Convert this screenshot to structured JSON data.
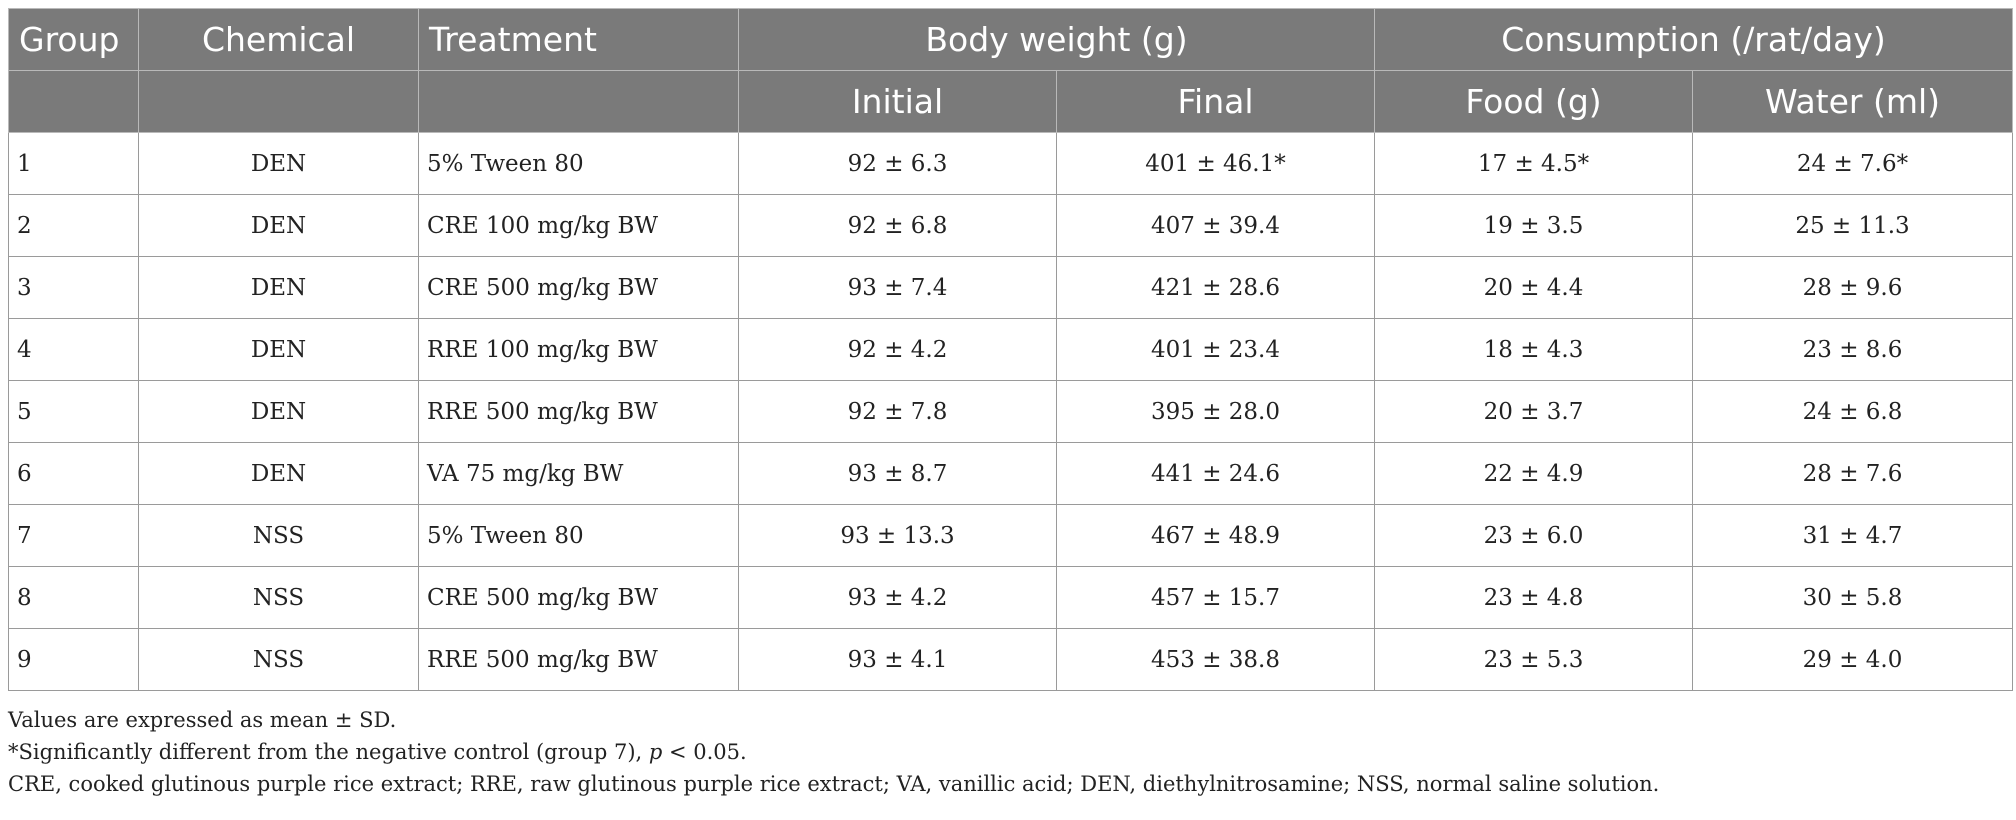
{
  "table": {
    "headers": {
      "group": "Group",
      "chemical": "Chemical",
      "treatment": "Treatment",
      "body_weight": "Body weight (g)",
      "consumption": "Consumption (/rat/day)",
      "initial": "Initial",
      "final": "Final",
      "food": "Food (g)",
      "water": "Water (ml)"
    },
    "rows": [
      {
        "group": "1",
        "chemical": "DEN",
        "treatment": "5% Tween 80",
        "initial": "92 ± 6.3",
        "final": "401 ± 46.1*",
        "food": "17 ± 4.5*",
        "water": "24 ± 7.6*"
      },
      {
        "group": "2",
        "chemical": "DEN",
        "treatment": "CRE 100 mg/kg BW",
        "initial": "92 ± 6.8",
        "final": "407 ± 39.4",
        "food": "19 ± 3.5",
        "water": "25 ± 11.3"
      },
      {
        "group": "3",
        "chemical": "DEN",
        "treatment": "CRE 500 mg/kg BW",
        "initial": "93 ± 7.4",
        "final": "421 ± 28.6",
        "food": "20 ± 4.4",
        "water": "28 ± 9.6"
      },
      {
        "group": "4",
        "chemical": "DEN",
        "treatment": "RRE 100 mg/kg BW",
        "initial": "92 ± 4.2",
        "final": "401 ± 23.4",
        "food": "18 ± 4.3",
        "water": "23 ± 8.6"
      },
      {
        "group": "5",
        "chemical": "DEN",
        "treatment": "RRE 500 mg/kg BW",
        "initial": "92 ± 7.8",
        "final": "395 ± 28.0",
        "food": "20 ± 3.7",
        "water": "24 ± 6.8"
      },
      {
        "group": "6",
        "chemical": "DEN",
        "treatment": "VA 75 mg/kg BW",
        "initial": "93 ± 8.7",
        "final": "441 ± 24.6",
        "food": "22 ± 4.9",
        "water": "28 ± 7.6"
      },
      {
        "group": "7",
        "chemical": "NSS",
        "treatment": "5% Tween 80",
        "initial": "93 ± 13.3",
        "final": "467 ± 48.9",
        "food": "23 ± 6.0",
        "water": "31 ± 4.7"
      },
      {
        "group": "8",
        "chemical": "NSS",
        "treatment": "CRE 500 mg/kg BW",
        "initial": "93 ± 4.2",
        "final": "457 ± 15.7",
        "food": "23 ± 4.8",
        "water": "30 ± 5.8"
      },
      {
        "group": "9",
        "chemical": "NSS",
        "treatment": "RRE 500 mg/kg BW",
        "initial": "93 ± 4.1",
        "final": "453 ± 38.8",
        "food": "23 ± 5.3",
        "water": "29 ± 4.0"
      }
    ]
  },
  "footnotes": {
    "note1": "Values are expressed as mean ± SD.",
    "note2_pre": "*Significantly different from the negative control (group 7), ",
    "note2_p": "p",
    "note2_post": " < 0.05.",
    "note3": "CRE, cooked glutinous purple rice extract; RRE, raw glutinous purple rice extract; VA, vanillic acid; DEN, diethylnitrosamine; NSS, normal saline solution."
  },
  "colors": {
    "header_bg": "#7a7a7a",
    "header_text": "#ffffff",
    "grid": "#9a9a9a"
  }
}
